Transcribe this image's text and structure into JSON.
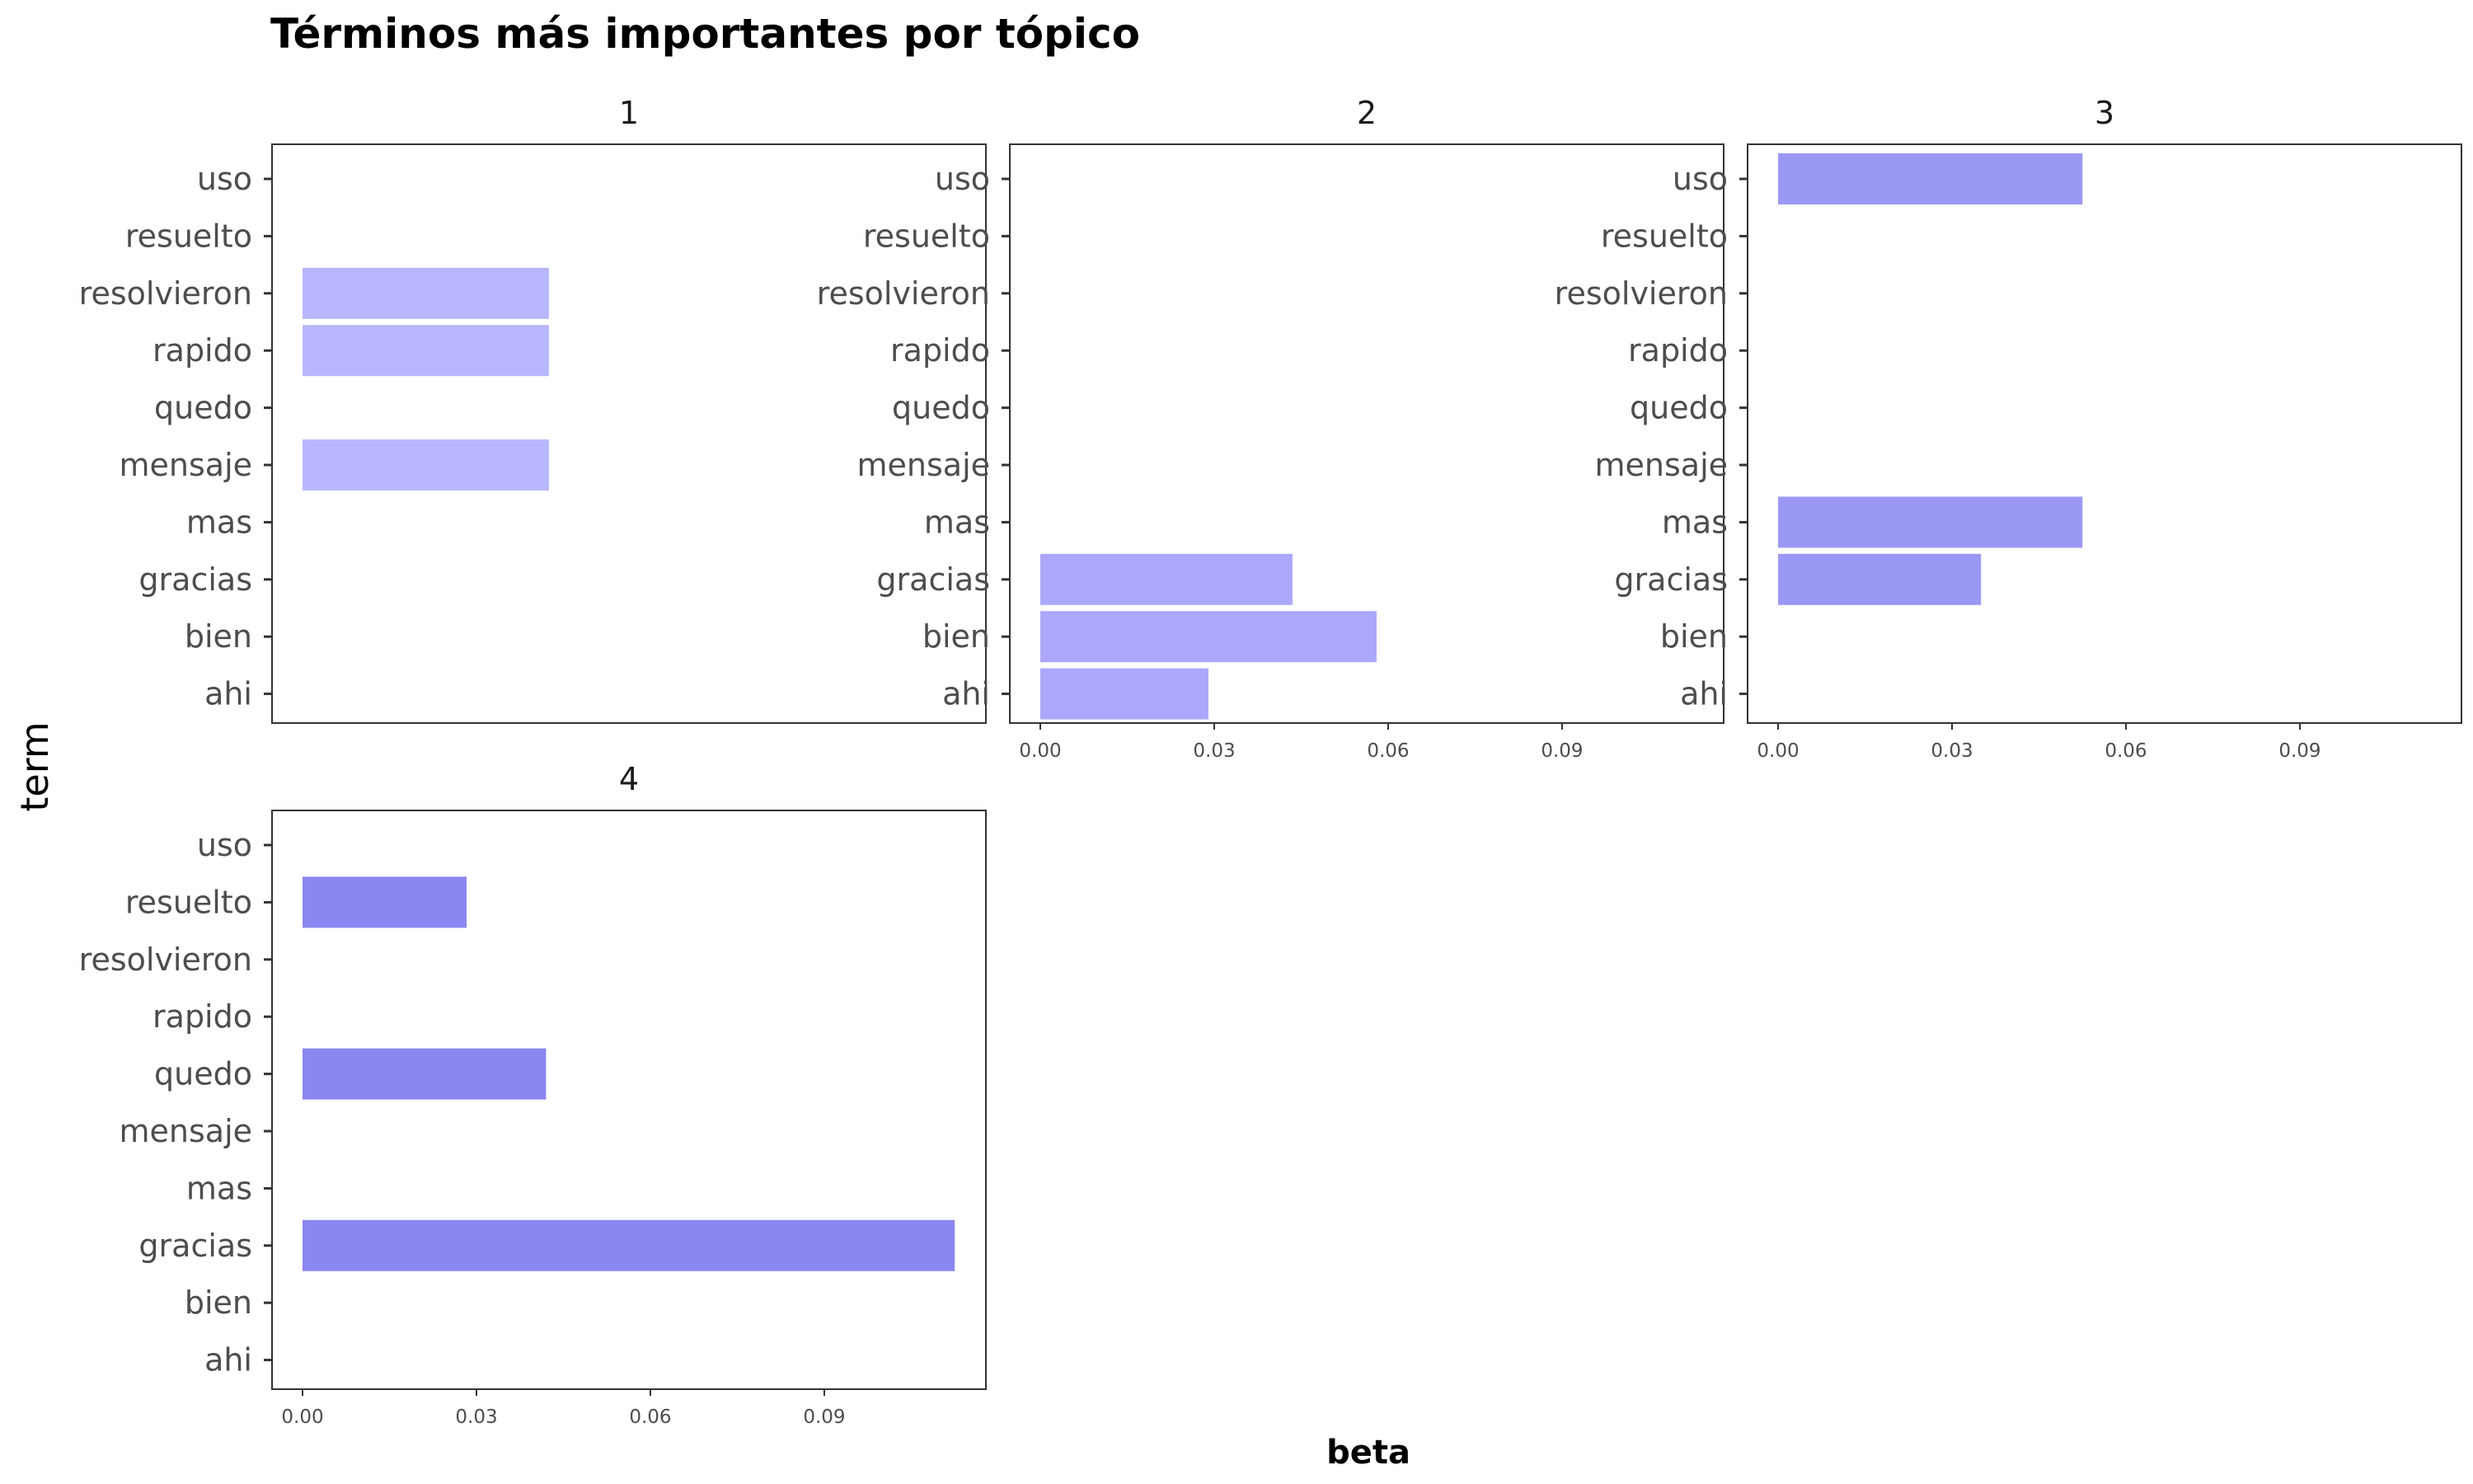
{
  "chart_data": {
    "type": "bar",
    "orientation": "horizontal",
    "facet": true,
    "title": "Términos más importantes por tópico",
    "xlabel": "beta",
    "ylabel": "term",
    "xlim": [
      0,
      0.115
    ],
    "x_ticks": [
      "0.00",
      "0.03",
      "0.06",
      "0.09"
    ],
    "x_tick_values": [
      0,
      0.03,
      0.06,
      0.09
    ],
    "categories": [
      "uso",
      "resuelto",
      "resolvieron",
      "rapido",
      "quedo",
      "mensaje",
      "mas",
      "gracias",
      "bien",
      "ahi"
    ],
    "grid": false,
    "legend": "none",
    "panels": [
      {
        "topic": "1",
        "color": "#b8b7fd",
        "values": [
          null,
          null,
          0.0425,
          0.0425,
          null,
          0.0425,
          null,
          null,
          null,
          null
        ]
      },
      {
        "topic": "2",
        "color": "#aba8fb",
        "values": [
          null,
          null,
          null,
          null,
          null,
          null,
          null,
          0.0435,
          0.058,
          0.029
        ]
      },
      {
        "topic": "3",
        "color": "#9b98f5",
        "values": [
          0.0525,
          null,
          null,
          null,
          null,
          null,
          0.0525,
          0.035,
          null,
          null
        ]
      },
      {
        "topic": "4",
        "color": "#8b87f0",
        "values": [
          null,
          0.0283,
          null,
          null,
          0.042,
          null,
          null,
          0.1125,
          null,
          null
        ]
      }
    ]
  }
}
